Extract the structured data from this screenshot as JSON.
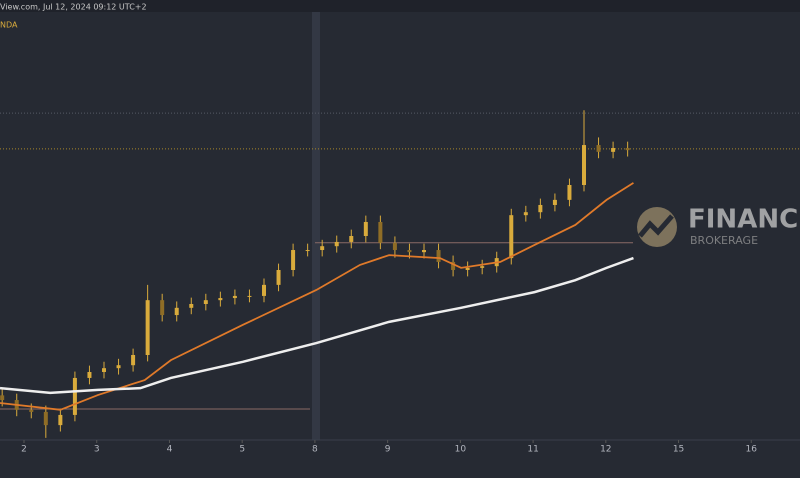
{
  "header": {
    "source": "View.com, Jul 12, 2024 09:12 UTC+2",
    "symbol": "NDA"
  },
  "watermark": {
    "name": "FINANCE",
    "sub": "BROKERAGE"
  },
  "chart_data": {
    "type": "candlestick",
    "xlim": [
      -0.33,
      10.67
    ],
    "ylim": [
      0,
      100
    ],
    "xticks": [
      {
        "value": 0,
        "label": "2"
      },
      {
        "value": 1,
        "label": "3"
      },
      {
        "value": 2,
        "label": "4"
      },
      {
        "value": 3,
        "label": "5"
      },
      {
        "value": 4,
        "label": "8"
      },
      {
        "value": 5,
        "label": "9"
      },
      {
        "value": 6,
        "label": "10"
      },
      {
        "value": 7,
        "label": "11"
      },
      {
        "value": 8,
        "label": "12"
      },
      {
        "value": 9,
        "label": "15"
      },
      {
        "value": 10,
        "label": "16"
      }
    ],
    "color": "#d9ab3c",
    "x": [
      -0.3,
      -0.1,
      0.1,
      0.3,
      0.5,
      0.7,
      0.9,
      1.1,
      1.3,
      1.5,
      1.7,
      1.9,
      2.1,
      2.3,
      2.5,
      2.7,
      2.9,
      3.1,
      3.3,
      3.5,
      3.7,
      3.9,
      4.1,
      4.3,
      4.5,
      4.7,
      4.9,
      5.1,
      5.3,
      5.5,
      5.7,
      5.9,
      6.1,
      6.3,
      6.5,
      6.7,
      6.9,
      7.1,
      7.3,
      7.5,
      7.7,
      7.9,
      8.1,
      8.3
    ],
    "open": [
      10.5,
      9.4,
      7.1,
      6.6,
      3.5,
      5.9,
      14.6,
      16.0,
      16.9,
      17.6,
      20.0,
      32.9,
      29.4,
      31.1,
      32.0,
      32.9,
      33.4,
      33.9,
      33.9,
      36.5,
      40.0,
      44.7,
      44.7,
      45.6,
      46.6,
      48.0,
      51.3,
      46.4,
      44.7,
      44.2,
      44.7,
      41.9,
      40.0,
      40.5,
      40.9,
      42.8,
      52.9,
      53.6,
      55.3,
      56.5,
      60.0,
      69.4,
      67.8,
      68.7
    ],
    "high": [
      12.0,
      10.9,
      8.6,
      8.1,
      7.4,
      16.1,
      17.5,
      18.4,
      19.1,
      21.5,
      36.5,
      34.4,
      32.6,
      33.5,
      34.4,
      34.9,
      35.4,
      35.4,
      38.0,
      41.5,
      46.2,
      46.2,
      47.1,
      48.1,
      49.5,
      52.8,
      52.8,
      47.9,
      46.2,
      46.2,
      46.2,
      43.4,
      42.0,
      42.4,
      44.3,
      54.4,
      55.1,
      56.8,
      58.0,
      61.5,
      77.6,
      71.2,
      70.2,
      70.2
    ],
    "low": [
      7.9,
      5.6,
      5.1,
      0.5,
      2.0,
      4.4,
      13.1,
      14.5,
      15.4,
      16.1,
      18.5,
      27.9,
      27.9,
      29.6,
      30.5,
      31.4,
      31.9,
      32.4,
      32.4,
      35.0,
      38.5,
      43.2,
      43.2,
      44.1,
      45.1,
      46.5,
      44.9,
      42.9,
      42.7,
      42.7,
      40.4,
      38.5,
      38.5,
      39.0,
      39.4,
      41.3,
      51.4,
      52.1,
      53.8,
      55.0,
      58.5,
      66.3,
      66.3,
      66.7
    ],
    "close": [
      9.4,
      7.1,
      6.6,
      3.5,
      5.9,
      14.6,
      16.0,
      16.9,
      17.6,
      20.0,
      32.9,
      29.4,
      31.1,
      32.0,
      32.9,
      33.4,
      33.9,
      33.9,
      36.5,
      40.0,
      44.7,
      44.7,
      45.6,
      46.6,
      48.0,
      51.3,
      46.4,
      44.7,
      44.2,
      44.7,
      41.9,
      40.0,
      40.5,
      40.9,
      42.8,
      52.9,
      53.6,
      55.3,
      56.5,
      60.0,
      69.4,
      67.8,
      68.7,
      68.2
    ],
    "lines": [
      {
        "color": "#e07a2a",
        "x": [
          -0.33,
          0.5,
          1.02,
          1.66,
          2.02,
          3.01,
          4.02,
          4.62,
          5.02,
          5.72,
          6.01,
          6.55,
          7.02,
          7.58,
          8.01,
          8.38
        ],
        "values": [
          8.7,
          7.1,
          10.6,
          14.1,
          18.8,
          27.1,
          35.3,
          41.2,
          43.5,
          42.8,
          40.5,
          41.9,
          45.9,
          50.6,
          56.5,
          60.5
        ]
      },
      {
        "color": "#eeeeee",
        "x": [
          -0.33,
          0.36,
          1.02,
          1.6,
          2.02,
          3.01,
          4.02,
          5.02,
          6.01,
          7.02,
          7.58,
          8.01,
          8.38
        ],
        "values": [
          12.2,
          11.1,
          11.8,
          12.2,
          14.6,
          18.4,
          22.8,
          27.8,
          31.1,
          34.8,
          37.6,
          40.5,
          42.8
        ]
      }
    ],
    "levels": [
      76.9,
      68.5,
      46.4,
      7.3
    ]
  }
}
